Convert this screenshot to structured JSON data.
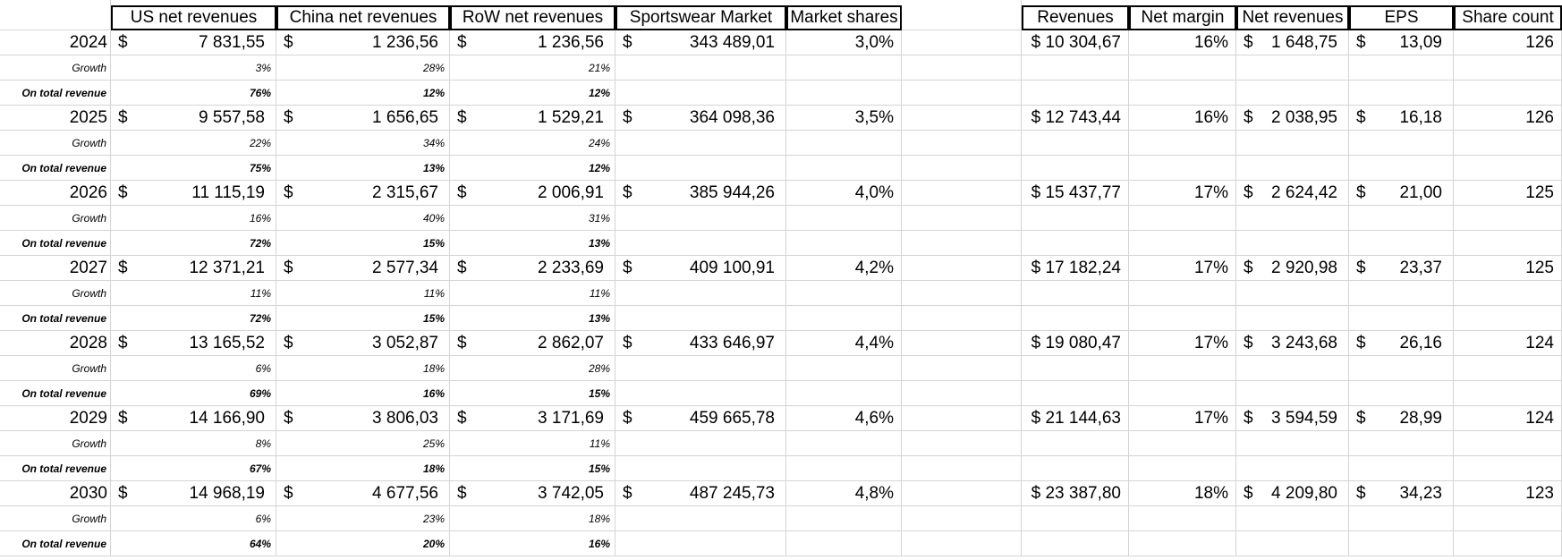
{
  "left_headers": [
    "US net revenues",
    "China net revenues",
    "RoW net revenues",
    "Sportswear Market",
    "Market shares"
  ],
  "right_headers": [
    "Revenues",
    "Net margin",
    "Net revenues",
    "EPS",
    "Share count"
  ],
  "currency_symbol": "$",
  "row_labels": {
    "growth": "Growth",
    "share": "On total revenue"
  },
  "years": [
    {
      "year": "2024",
      "us": "7 831,55",
      "china": "1 236,56",
      "row": "1 236,56",
      "market": "343 489,01",
      "market_share": "3,0%",
      "growth": [
        "3%",
        "28%",
        "21%"
      ],
      "share": [
        "76%",
        "12%",
        "12%"
      ],
      "revenues": "$ 10 304,67",
      "net_margin": "16%",
      "net_revenues": "1 648,75",
      "eps": "13,09",
      "share_count": "126"
    },
    {
      "year": "2025",
      "us": "9 557,58",
      "china": "1 656,65",
      "row": "1 529,21",
      "market": "364 098,36",
      "market_share": "3,5%",
      "growth": [
        "22%",
        "34%",
        "24%"
      ],
      "share": [
        "75%",
        "13%",
        "12%"
      ],
      "revenues": "$ 12 743,44",
      "net_margin": "16%",
      "net_revenues": "2 038,95",
      "eps": "16,18",
      "share_count": "126"
    },
    {
      "year": "2026",
      "us": "11 115,19",
      "china": "2 315,67",
      "row": "2 006,91",
      "market": "385 944,26",
      "market_share": "4,0%",
      "growth": [
        "16%",
        "40%",
        "31%"
      ],
      "share": [
        "72%",
        "15%",
        "13%"
      ],
      "revenues": "$ 15 437,77",
      "net_margin": "17%",
      "net_revenues": "2 624,42",
      "eps": "21,00",
      "share_count": "125"
    },
    {
      "year": "2027",
      "us": "12 371,21",
      "china": "2 577,34",
      "row": "2 233,69",
      "market": "409 100,91",
      "market_share": "4,2%",
      "growth": [
        "11%",
        "11%",
        "11%"
      ],
      "share": [
        "72%",
        "15%",
        "13%"
      ],
      "revenues": "$ 17 182,24",
      "net_margin": "17%",
      "net_revenues": "2 920,98",
      "eps": "23,37",
      "share_count": "125"
    },
    {
      "year": "2028",
      "us": "13 165,52",
      "china": "3 052,87",
      "row": "2 862,07",
      "market": "433 646,97",
      "market_share": "4,4%",
      "growth": [
        "6%",
        "18%",
        "28%"
      ],
      "share": [
        "69%",
        "16%",
        "15%"
      ],
      "revenues": "$ 19 080,47",
      "net_margin": "17%",
      "net_revenues": "3 243,68",
      "eps": "26,16",
      "share_count": "124"
    },
    {
      "year": "2029",
      "us": "14 166,90",
      "china": "3 806,03",
      "row": "3 171,69",
      "market": "459 665,78",
      "market_share": "4,6%",
      "growth": [
        "8%",
        "25%",
        "11%"
      ],
      "share": [
        "67%",
        "18%",
        "15%"
      ],
      "revenues": "$ 21 144,63",
      "net_margin": "17%",
      "net_revenues": "3 594,59",
      "eps": "28,99",
      "share_count": "124"
    },
    {
      "year": "2030",
      "us": "14 968,19",
      "china": "4 677,56",
      "row": "3 742,05",
      "market": "487 245,73",
      "market_share": "4,8%",
      "growth": [
        "6%",
        "23%",
        "18%"
      ],
      "share": [
        "64%",
        "20%",
        "16%"
      ],
      "revenues": "$ 23 387,80",
      "net_margin": "18%",
      "net_revenues": "4 209,80",
      "eps": "34,23",
      "share_count": "123"
    }
  ]
}
